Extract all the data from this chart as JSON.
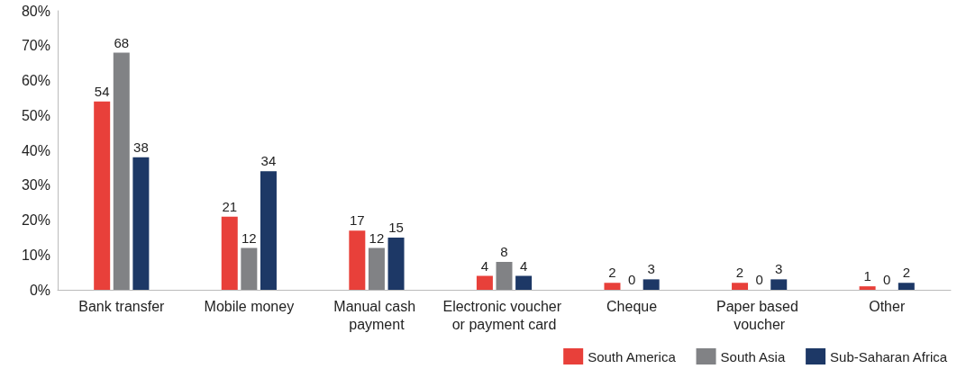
{
  "chart_data": {
    "type": "bar",
    "categories": [
      "Bank transfer",
      "Mobile money",
      "Manual cash payment",
      "Electronic voucher or payment card",
      "Cheque",
      "Paper based voucher",
      "Other"
    ],
    "series": [
      {
        "name": "South America",
        "color": "#e8403a",
        "values": [
          54,
          21,
          17,
          4,
          2,
          2,
          1
        ]
      },
      {
        "name": "South Asia",
        "color": "#818285",
        "values": [
          68,
          12,
          12,
          8,
          0,
          0,
          0
        ]
      },
      {
        "name": "Sub-Saharan Africa",
        "color": "#1d3866",
        "values": [
          38,
          34,
          15,
          4,
          3,
          3,
          2
        ]
      }
    ],
    "ylim": [
      0,
      80
    ],
    "yticks": [
      {
        "value": 0,
        "label": "0%"
      },
      {
        "value": 10,
        "label": "10%"
      },
      {
        "value": 20,
        "label": "20%"
      },
      {
        "value": 30,
        "label": "30%"
      },
      {
        "value": 40,
        "label": "40%"
      },
      {
        "value": 50,
        "label": "50%"
      },
      {
        "value": 60,
        "label": "60%"
      },
      {
        "value": 70,
        "label": "70%"
      },
      {
        "value": 80,
        "label": "80%"
      }
    ],
    "data_labels": true,
    "grid": false,
    "legend": "bottom right"
  }
}
